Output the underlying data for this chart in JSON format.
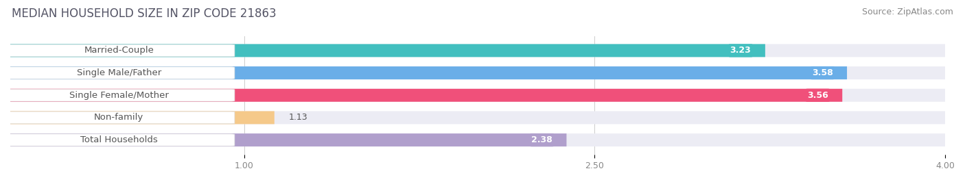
{
  "title": "MEDIAN HOUSEHOLD SIZE IN ZIP CODE 21863",
  "source": "Source: ZipAtlas.com",
  "categories": [
    "Married-Couple",
    "Single Male/Father",
    "Single Female/Mother",
    "Non-family",
    "Total Households"
  ],
  "values": [
    3.23,
    3.58,
    3.56,
    1.13,
    2.38
  ],
  "bar_colors": [
    "#42bfbf",
    "#6aaee8",
    "#f0507a",
    "#f5c98a",
    "#b09fcc"
  ],
  "bar_bg_color": "#ececf4",
  "xlim": [
    0,
    4.0
  ],
  "xticks": [
    1.0,
    2.5,
    4.0
  ],
  "title_fontsize": 12,
  "source_fontsize": 9,
  "label_fontsize": 9.5,
  "value_fontsize": 9,
  "tick_fontsize": 9,
  "bar_height": 0.58,
  "background_color": "#ffffff"
}
